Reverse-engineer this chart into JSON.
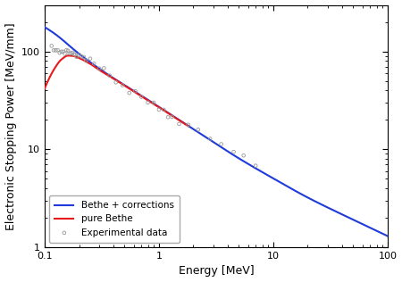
{
  "title": "",
  "xlabel": "Energy [MeV]",
  "ylabel": "Electronic Stopping Power [MeV/mm]",
  "xlim": [
    0.1,
    100
  ],
  "ylim": [
    1,
    300
  ],
  "legend_entries": [
    "pure Bethe",
    "Bethe + corrections",
    "Experimental data"
  ],
  "line_red_color": "#e8191a",
  "line_blue_color": "#1f3bdb",
  "scatter_color": "#999999",
  "background_color": "#ffffff",
  "figsize": [
    4.5,
    3.16
  ],
  "dpi": 100,
  "bethe_pure_knots_E": [
    0.1,
    0.12,
    0.14,
    0.16,
    0.18,
    0.2,
    0.25,
    0.3,
    0.4,
    0.5,
    0.7,
    1.0,
    2.0,
    5.0,
    10.0,
    20.0,
    50.0,
    100.0
  ],
  "bethe_pure_knots_S": [
    42.0,
    65.0,
    83.0,
    91.0,
    90.0,
    86.0,
    75.0,
    65.0,
    53.0,
    45.0,
    35.0,
    27.0,
    16.0,
    8.0,
    5.0,
    3.2,
    1.9,
    1.3
  ],
  "bethe_corr_knots_E": [
    0.1,
    0.12,
    0.14,
    0.16,
    0.18,
    0.2,
    0.25,
    0.3,
    0.4,
    0.5,
    0.7,
    1.0,
    2.0,
    5.0,
    10.0,
    20.0,
    50.0,
    100.0
  ],
  "bethe_corr_knots_S": [
    178.0,
    155.0,
    135.0,
    118.0,
    105.0,
    95.0,
    78.0,
    67.0,
    53.5,
    45.5,
    35.5,
    27.2,
    16.1,
    8.1,
    5.05,
    3.22,
    1.91,
    1.3
  ],
  "exp_E": [
    0.115,
    0.12,
    0.125,
    0.13,
    0.135,
    0.14,
    0.145,
    0.15,
    0.155,
    0.16,
    0.165,
    0.17,
    0.175,
    0.18,
    0.185,
    0.19,
    0.2,
    0.21,
    0.22,
    0.23,
    0.25,
    0.27,
    0.3,
    0.33,
    0.37,
    0.42,
    0.48,
    0.55,
    0.62,
    0.7,
    0.8,
    0.9,
    1.0,
    1.1,
    1.2,
    1.3,
    1.5,
    1.8,
    2.2,
    2.8,
    3.5,
    4.5,
    5.5,
    7.0
  ],
  "exp_S": [
    108,
    105,
    103,
    102,
    100,
    100,
    100,
    101,
    100,
    100,
    98,
    97,
    96,
    95,
    94,
    93,
    91,
    89,
    87,
    85,
    80,
    75,
    68,
    63,
    57,
    51,
    46,
    41,
    38,
    35,
    31,
    29,
    27,
    25,
    23,
    22,
    19,
    17,
    15,
    13,
    11,
    9.5,
    8.5,
    7.0
  ]
}
